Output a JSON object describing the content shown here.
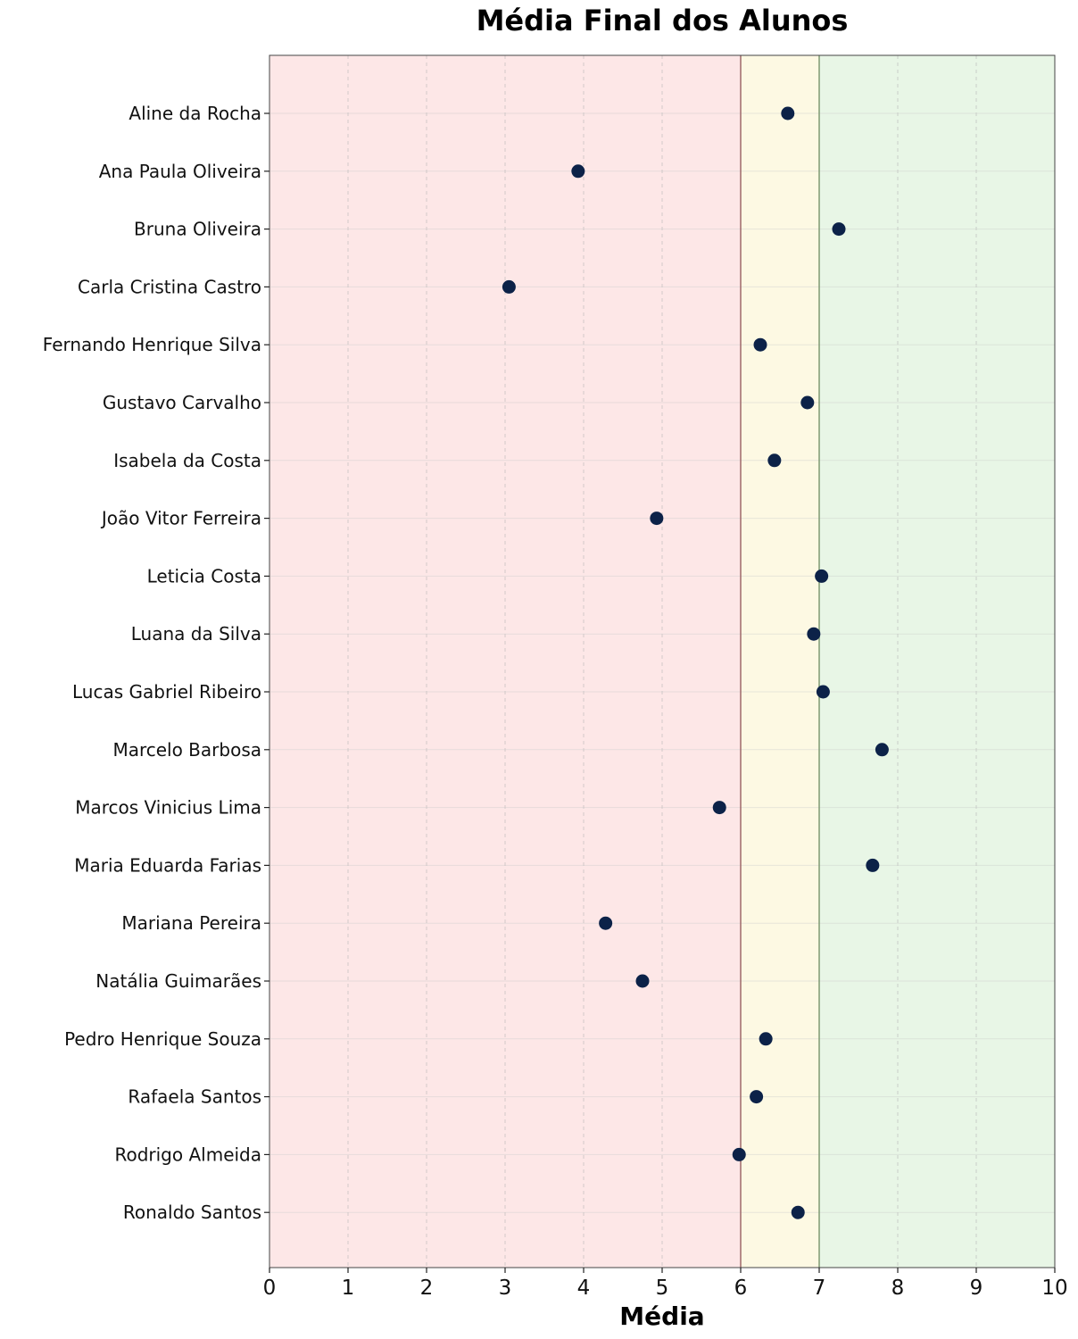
{
  "chart_data": {
    "type": "scatter",
    "title": "Média Final dos Alunos",
    "xlabel": "Média",
    "ylabel": "",
    "xlim": [
      0,
      10
    ],
    "xticks": [
      0,
      1,
      2,
      3,
      4,
      5,
      6,
      7,
      8,
      9,
      10
    ],
    "grid": true,
    "bands": [
      {
        "from": 0,
        "to": 6,
        "color": "#fde7e7"
      },
      {
        "from": 6,
        "to": 7,
        "color": "#fdf9e3"
      },
      {
        "from": 7,
        "to": 10,
        "color": "#e8f6e6"
      }
    ],
    "band_lines": [
      {
        "x": 6,
        "color": "#9e6a6a"
      },
      {
        "x": 7,
        "color": "#7f9a72"
      }
    ],
    "point_color": "#0c2248",
    "categories": [
      "Aline da Rocha",
      "Ana Paula Oliveira",
      "Bruna Oliveira",
      "Carla Cristina Castro",
      "Fernando Henrique Silva",
      "Gustavo Carvalho",
      "Isabela da Costa",
      "João Vitor Ferreira",
      "Leticia Costa",
      "Luana da Silva",
      "Lucas Gabriel Ribeiro",
      "Marcelo Barbosa",
      "Marcos Vinicius Lima",
      "Maria Eduarda Farias",
      "Mariana Pereira",
      "Natália Guimarães",
      "Pedro Henrique Souza",
      "Rafaela Santos",
      "Rodrigo Almeida",
      "Ronaldo Santos"
    ],
    "values": [
      6.6,
      3.93,
      7.25,
      3.05,
      6.25,
      6.85,
      6.43,
      4.93,
      7.03,
      6.93,
      7.05,
      7.8,
      5.73,
      7.68,
      4.28,
      4.75,
      6.32,
      6.2,
      5.98,
      6.73
    ]
  }
}
